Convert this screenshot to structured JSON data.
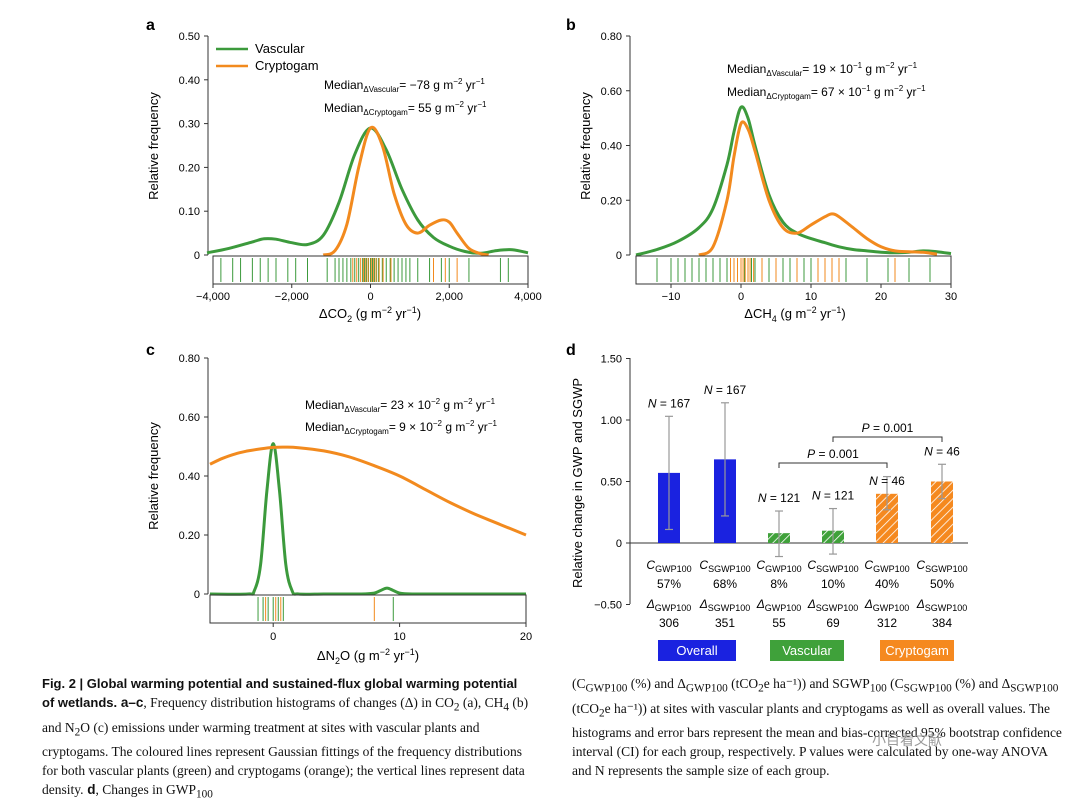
{
  "panels": {
    "a": {
      "letter": "a",
      "ylabel": "Relative frequency",
      "xlabel": "ΔCO",
      "xlabel_sub": "2",
      "xlabel_unit": " (g m",
      "xlabel_exp1": "−2",
      "xlabel_mid": " yr",
      "xlabel_exp2": "−1",
      "xlabel_end": ")",
      "yticks": [
        "0",
        "0.10",
        "0.20",
        "0.30",
        "0.40",
        "0.50"
      ],
      "xticks": [
        "−4,000",
        "−2,000",
        "0",
        "2,000",
        "4,000"
      ],
      "legend": {
        "vascular": "Vascular",
        "cryptogam": "Cryptogam"
      },
      "median1": {
        "pre": "Median",
        "sub": "ΔVascular",
        "val": "= −78 g m",
        "exp1": "−2",
        "mid": " yr",
        "exp2": "−1"
      },
      "median2": {
        "pre": "Median",
        "sub": "ΔCryptogam",
        "val": "= 55 g m",
        "exp1": "−2",
        "mid": " yr",
        "exp2": "−1"
      }
    },
    "b": {
      "letter": "b",
      "ylabel": "Relative frequency",
      "xlabel": "ΔCH",
      "xlabel_sub": "4",
      "xlabel_unit": " (g m",
      "xlabel_exp1": "−2",
      "xlabel_mid": " yr",
      "xlabel_exp2": "−1",
      "xlabel_end": ")",
      "yticks": [
        "0",
        "0.20",
        "0.40",
        "0.60",
        "0.80"
      ],
      "xticks": [
        "−10",
        "0",
        "10",
        "20",
        "30"
      ],
      "median1": {
        "pre": "Median",
        "sub": "ΔVascular",
        "val": "= 19 × 10",
        "exp0": "−1",
        "val2": " g m",
        "exp1": "−2",
        "mid": " yr",
        "exp2": "−1"
      },
      "median2": {
        "pre": "Median",
        "sub": "ΔCryptogam",
        "val": "= 67 × 10",
        "exp0": "−1",
        "val2": " g m",
        "exp1": "−2",
        "mid": " yr",
        "exp2": "−1"
      }
    },
    "c": {
      "letter": "c",
      "ylabel": "Relative frequency",
      "xlabel": "ΔN",
      "xlabel_sub": "2",
      "xlabel_o": "O",
      "xlabel_unit": " (g m",
      "xlabel_exp1": "−2",
      "xlabel_mid": " yr",
      "xlabel_exp2": "−1",
      "xlabel_end": ")",
      "yticks": [
        "0",
        "0.20",
        "0.40",
        "0.60",
        "0.80"
      ],
      "xticks": [
        "0",
        "10",
        "20"
      ],
      "median1": {
        "pre": "Median",
        "sub": "ΔVascular",
        "val": "= 23 × 10",
        "exp0": "−2",
        "val2": " g m",
        "exp1": "−2",
        "mid": " yr",
        "exp2": "−1"
      },
      "median2": {
        "pre": "Median",
        "sub": "ΔCryptogam",
        "val": "= 9 × 10",
        "exp0": "−2",
        "val2": " g m",
        "exp1": "−2",
        "mid": " yr",
        "exp2": "−1"
      }
    },
    "d": {
      "letter": "d",
      "ylabel": "Relative change in GWP and SGWP",
      "yticks": [
        "−0.50",
        "0",
        "0.50",
        "1.00",
        "1.50"
      ],
      "p_values": [
        "P = 0.001",
        "P = 0.001"
      ],
      "groups": [
        "Overall",
        "Vascular",
        "Cryptogam"
      ]
    }
  },
  "chart_data": [
    {
      "panel": "a",
      "type": "line",
      "xlim": [
        -4000,
        4000
      ],
      "ylim": [
        0,
        0.5
      ],
      "series": [
        {
          "name": "Vascular",
          "x": [
            -4200,
            -3600,
            -3000,
            -2700,
            -2400,
            -2000,
            -1600,
            -1200,
            -800,
            -400,
            0,
            400,
            800,
            1200,
            1600,
            2000,
            2400,
            2800,
            3200,
            3600,
            4000
          ],
          "y": [
            0.005,
            0.015,
            0.03,
            0.037,
            0.036,
            0.028,
            0.024,
            0.045,
            0.12,
            0.23,
            0.29,
            0.24,
            0.15,
            0.08,
            0.04,
            0.02,
            0.008,
            0.004,
            0.01,
            0.012,
            0.005
          ]
        },
        {
          "name": "Cryptogam",
          "x": [
            -1200,
            -900,
            -600,
            -300,
            0,
            300,
            600,
            900,
            1200,
            1500,
            1800,
            2000,
            2200,
            2500,
            2800,
            3000
          ],
          "y": [
            0.0,
            0.01,
            0.07,
            0.2,
            0.29,
            0.25,
            0.14,
            0.07,
            0.05,
            0.068,
            0.08,
            0.075,
            0.05,
            0.015,
            0.003,
            0.0
          ]
        }
      ],
      "rug": {
        "vascular": [
          -3800,
          -3500,
          -3300,
          -3000,
          -2800,
          -2600,
          -2400,
          -2100,
          -1900,
          -1600,
          -1100,
          -900,
          -800,
          -700,
          -600,
          -500,
          -400,
          -300,
          -200,
          -150,
          -100,
          -50,
          0,
          50,
          100,
          150,
          200,
          300,
          400,
          500,
          600,
          700,
          800,
          900,
          1000,
          1200,
          1500,
          1800,
          2000,
          2500,
          3300,
          3500
        ],
        "cryptogam": [
          -450,
          -350,
          -250,
          -180,
          -120,
          -60,
          20,
          80,
          140,
          220,
          320,
          520,
          1600,
          1900,
          2200
        ]
      },
      "annotations": [
        "Median ΔVascular = −78 g m−2 yr−1",
        "Median ΔCryptogam = 55 g m−2 yr−1"
      ]
    },
    {
      "panel": "b",
      "type": "line",
      "xlim": [
        -15,
        30
      ],
      "ylim": [
        0,
        0.8
      ],
      "series": [
        {
          "name": "Vascular",
          "x": [
            -15,
            -12,
            -9,
            -6,
            -4,
            -2,
            -1,
            0,
            1,
            2,
            4,
            6,
            8,
            10,
            12,
            14,
            16,
            18,
            20,
            22,
            24,
            26,
            28,
            30
          ],
          "y": [
            0.0,
            0.02,
            0.05,
            0.1,
            0.17,
            0.33,
            0.45,
            0.54,
            0.5,
            0.4,
            0.22,
            0.12,
            0.08,
            0.06,
            0.045,
            0.03,
            0.02,
            0.015,
            0.01,
            0.008,
            0.01,
            0.015,
            0.012,
            0.005
          ]
        },
        {
          "name": "Cryptogam",
          "x": [
            -6,
            -4,
            -2,
            -1,
            0,
            1,
            2,
            4,
            6,
            8,
            10,
            12,
            13,
            14,
            16,
            18,
            20,
            22,
            24,
            26,
            28
          ],
          "y": [
            0.0,
            0.03,
            0.2,
            0.36,
            0.48,
            0.46,
            0.38,
            0.2,
            0.1,
            0.08,
            0.11,
            0.14,
            0.15,
            0.14,
            0.1,
            0.06,
            0.03,
            0.015,
            0.012,
            0.01,
            0.003
          ]
        }
      ],
      "rug": {
        "vascular": [
          -12,
          -10,
          -9,
          -8,
          -7,
          -6,
          -5,
          -4,
          -3,
          -2,
          -1.5,
          -1,
          -0.5,
          0,
          0.5,
          1,
          1.5,
          2,
          3,
          4,
          5,
          6,
          7,
          8,
          9,
          10,
          11,
          12,
          15,
          18,
          21,
          24,
          27
        ],
        "cryptogam": [
          -1.5,
          -1,
          -0.5,
          0,
          0.3,
          0.6,
          1,
          1.3,
          1.8,
          3,
          5,
          8,
          11,
          12,
          13,
          14,
          22
        ]
      },
      "annotations": [
        "Median ΔVascular = 19 × 10−1 g m−2 yr−1",
        "Median ΔCryptogam = 67 × 10−1 g m−2 yr−1"
      ]
    },
    {
      "panel": "c",
      "type": "line",
      "xlim": [
        -5,
        20
      ],
      "ylim": [
        0,
        0.8
      ],
      "series": [
        {
          "name": "Vascular",
          "x": [
            -5,
            -2,
            -1.5,
            -1,
            -0.5,
            0,
            0.5,
            1,
            1.5,
            2,
            4,
            6,
            7,
            8,
            8.5,
            9,
            9.5,
            10,
            11,
            13,
            20
          ],
          "y": [
            0.0,
            0.0,
            0.01,
            0.1,
            0.35,
            0.51,
            0.35,
            0.1,
            0.01,
            0.0,
            0.0,
            0.0,
            0.0,
            0.003,
            0.012,
            0.02,
            0.012,
            0.003,
            0.0,
            0.0,
            0.0
          ]
        },
        {
          "name": "Cryptogam",
          "x": [
            -5,
            -4,
            -3,
            -2,
            -1,
            0,
            1,
            2,
            4,
            6,
            8,
            10,
            12,
            14,
            16,
            18,
            20
          ],
          "y": [
            0.44,
            0.46,
            0.475,
            0.485,
            0.492,
            0.497,
            0.498,
            0.496,
            0.485,
            0.465,
            0.435,
            0.4,
            0.355,
            0.31,
            0.27,
            0.235,
            0.2
          ]
        }
      ],
      "rug": {
        "vascular": [
          -1.2,
          -0.8,
          -0.4,
          0,
          0.4,
          0.8,
          9.5
        ],
        "cryptogam": [
          -0.6,
          0.2,
          0.6,
          8
        ]
      },
      "annotations": [
        "Median ΔVascular = 23 × 10−2 g m−2 yr−1",
        "Median ΔCryptogam = 9 × 10−2 g m−2 yr−1"
      ]
    },
    {
      "panel": "d",
      "type": "bar",
      "ylim": [
        -0.5,
        1.5
      ],
      "categories": [
        "Overall GWP100",
        "Overall SGWP100",
        "Vascular GWP100",
        "Vascular SGWP100",
        "Cryptogam GWP100",
        "Cryptogam SGWP100"
      ],
      "values": [
        0.57,
        0.68,
        0.08,
        0.1,
        0.4,
        0.5
      ],
      "ci_low": [
        0.11,
        0.22,
        -0.11,
        -0.09,
        0.27,
        0.36
      ],
      "ci_high": [
        1.03,
        1.14,
        0.26,
        0.28,
        0.54,
        0.64
      ],
      "n_labels": [
        "N = 167",
        "N = 167",
        "N = 121",
        "N = 121",
        "N = 46",
        "N = 46"
      ],
      "c_labels": [
        "GWP100",
        "SGWP100",
        "GWP100",
        "SGWP100",
        "GWP100",
        "SGWP100"
      ],
      "c_values": [
        "57%",
        "68%",
        "8%",
        "10%",
        "40%",
        "50%"
      ],
      "delta_values": [
        "306",
        "351",
        "55",
        "69",
        "312",
        "384"
      ],
      "groups": [
        "Overall",
        "Vascular",
        "Cryptogam"
      ],
      "p_values": [
        "P = 0.001",
        "P = 0.001"
      ]
    }
  ],
  "caption": {
    "left_title": "Fig. 2 | Global warming potential and sustained-flux global warming potential of wetlands.",
    "left_body_1": " a–c",
    "left_body_2": ", Frequency distribution histograms of changes (Δ) in CO",
    "left_body_3": "2",
    "left_body_4": " (a), CH",
    "left_body_5": "4",
    "left_body_6": " (b) and N",
    "left_body_7": "2",
    "left_body_8": "O (c) emissions under warming treatment at sites with vascular plants and cryptogams. The coloured lines represent Gaussian fittings of the frequency distributions for both vascular plants (green) and cryptogams (orange); the vertical lines represent data density.",
    "left_body_9": " d",
    "left_body_10": ", Changes in GWP",
    "left_body_11": "100",
    "right_text_1": "(C",
    "right_text_2": "GWP100",
    "right_text_3": " (%) and Δ",
    "right_text_4": "GWP100",
    "right_text_5": " (tCO",
    "right_text_6": "2",
    "right_text_7": "e ha⁻¹)) and SGWP",
    "right_text_8": "100",
    "right_text_9": " (C",
    "right_text_10": "SGWP100",
    "right_text_11": " (%) and Δ",
    "right_text_12": "SGWP100",
    "right_text_13": " (tCO",
    "right_text_14": "2",
    "right_text_15": "e ha⁻¹)) at sites with vascular plants and cryptogams as well as overall values. The histograms and error bars represent the mean and bias-corrected 95% bootstrap confidence interval (CI) for each group, respectively. P values were calculated by one-way ANOVA and N represents the sample size of each group."
  },
  "watermark": "小目看文献",
  "colors": {
    "vascular": "#3c9a3c",
    "cryptogam": "#f28a1e",
    "overall": "#1a22e0",
    "group_vascular": "#3fa13a",
    "group_cryptogam": "#f5891f",
    "axis": "#333333"
  }
}
